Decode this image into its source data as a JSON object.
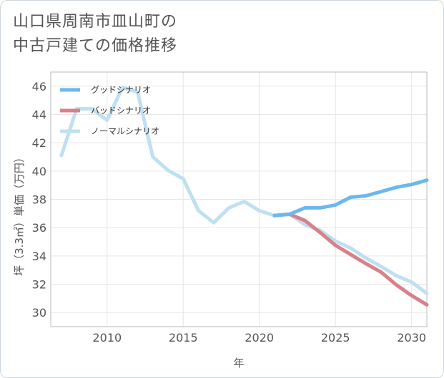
{
  "title_line1": "山口県周南市皿山町の",
  "title_line2": "中古戸建ての価格推移",
  "chart_data": {
    "type": "line",
    "title": "山口県周南市皿山町の中古戸建ての価格推移",
    "xlabel": "年",
    "ylabel": "坪（3.3㎡）単価（万円）",
    "xlim": [
      2006.3,
      2031
    ],
    "ylim": [
      29,
      47
    ],
    "x_ticks": [
      2010,
      2015,
      2020,
      2025,
      2030
    ],
    "y_ticks": [
      30,
      32,
      34,
      36,
      38,
      40,
      42,
      44,
      46
    ],
    "legend_position": "top-left",
    "series": [
      {
        "name": "グッドシナリオ",
        "color": "#6cb8ec",
        "points": [
          [
            2021,
            36.85
          ],
          [
            2022,
            36.95
          ],
          [
            2023,
            37.4
          ],
          [
            2024,
            37.4
          ],
          [
            2025,
            37.6
          ],
          [
            2026,
            38.15
          ],
          [
            2027,
            38.25
          ],
          [
            2028,
            38.55
          ],
          [
            2029,
            38.85
          ],
          [
            2030,
            39.05
          ],
          [
            2031,
            39.35
          ]
        ]
      },
      {
        "name": "バッドシナリオ",
        "color": "#d9808a",
        "points": [
          [
            2021,
            36.85
          ],
          [
            2022,
            36.95
          ],
          [
            2023,
            36.5
          ],
          [
            2024,
            35.65
          ],
          [
            2025,
            34.75
          ],
          [
            2026,
            34.1
          ],
          [
            2027,
            33.45
          ],
          [
            2028,
            32.85
          ],
          [
            2029,
            31.95
          ],
          [
            2030,
            31.2
          ],
          [
            2031,
            30.55
          ]
        ]
      },
      {
        "name": "ノーマルシナリオ",
        "color": "#bfe0f1",
        "points": [
          [
            2007,
            41.1
          ],
          [
            2008,
            44.4
          ],
          [
            2009,
            44.4
          ],
          [
            2010,
            43.6
          ],
          [
            2011,
            45.9
          ],
          [
            2012,
            45.6
          ],
          [
            2013,
            41.0
          ],
          [
            2014,
            40.05
          ],
          [
            2015,
            39.45
          ],
          [
            2016,
            37.2
          ],
          [
            2017,
            36.35
          ],
          [
            2018,
            37.4
          ],
          [
            2019,
            37.85
          ],
          [
            2020,
            37.2
          ],
          [
            2021,
            36.85
          ],
          [
            2022,
            36.95
          ],
          [
            2023,
            36.2
          ],
          [
            2024,
            35.8
          ],
          [
            2025,
            35.05
          ],
          [
            2026,
            34.55
          ],
          [
            2027,
            33.85
          ],
          [
            2028,
            33.25
          ],
          [
            2029,
            32.6
          ],
          [
            2030,
            32.15
          ],
          [
            2031,
            31.35
          ]
        ]
      }
    ]
  }
}
